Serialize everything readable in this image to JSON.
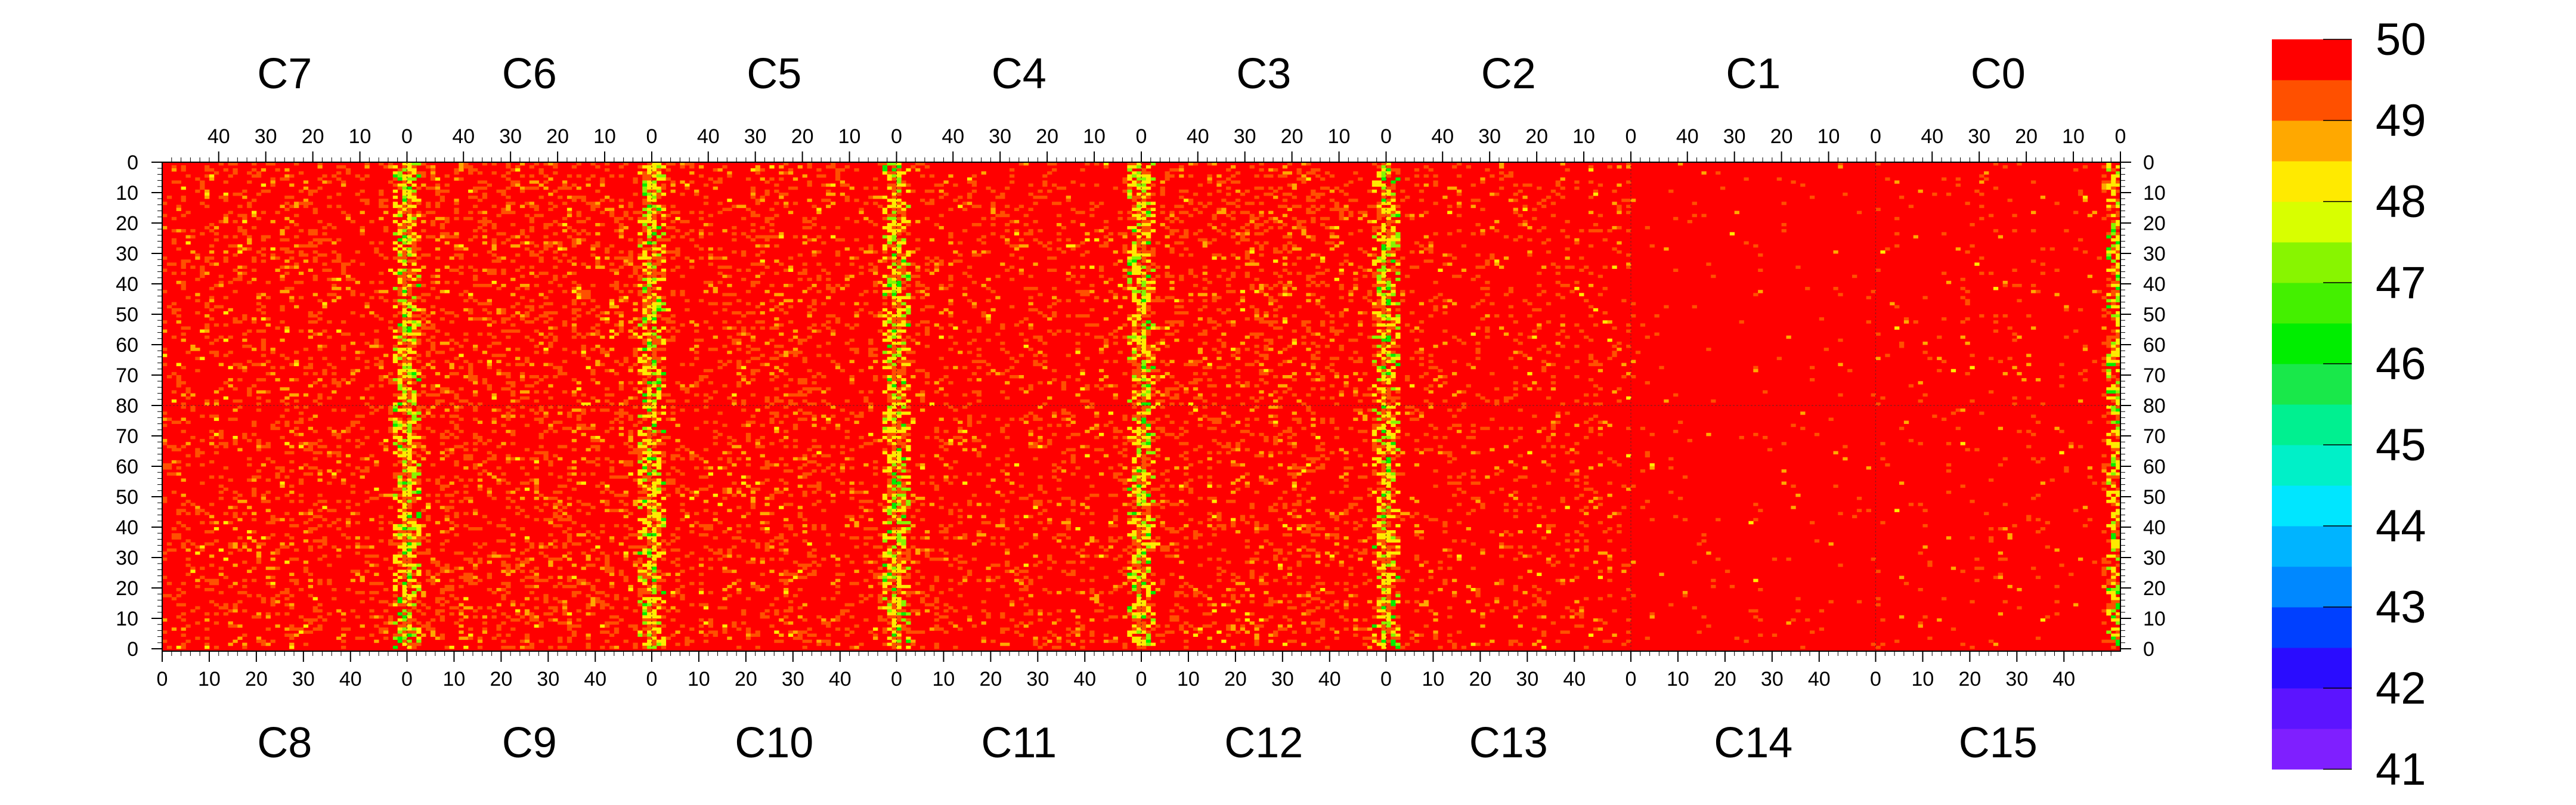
{
  "chart_data": {
    "type": "heatmap",
    "title": "",
    "xlabel": "",
    "ylabel": "",
    "z_range": [
      41,
      50
    ],
    "palette": [
      "#7f1fff",
      "#5c14ff",
      "#2a0cff",
      "#0040ff",
      "#0088ff",
      "#00b4ff",
      "#00e6ff",
      "#00f0c8",
      "#00f090",
      "#19e84a",
      "#00ee00",
      "#44f000",
      "#88f500",
      "#d8ff00",
      "#ffea00",
      "#ffa800",
      "#ff5000",
      "#ff0000"
    ],
    "colorbar_ticks": [
      "50",
      "49",
      "48",
      "47",
      "46",
      "45",
      "44",
      "43",
      "42",
      "41"
    ],
    "top_chip_labels": [
      "C7",
      "C6",
      "C5",
      "C4",
      "C3",
      "C2",
      "C1",
      "C0"
    ],
    "bottom_chip_labels": [
      "C8",
      "C9",
      "C10",
      "C11",
      "C12",
      "C13",
      "C14",
      "C15"
    ],
    "top_x_tick_labels": [
      "40",
      "30",
      "20",
      "10",
      "0"
    ],
    "bottom_x_tick_labels": [
      "0",
      "10",
      "20",
      "30",
      "40"
    ],
    "y_tick_labels_top_half": [
      "0",
      "10",
      "20",
      "30",
      "40",
      "50",
      "60",
      "70",
      "80"
    ],
    "y_tick_labels_bottom_half": [
      "70",
      "60",
      "50",
      "40",
      "30",
      "20",
      "10",
      "0"
    ],
    "chip_columns": 52,
    "rows_per_half": 80,
    "dominant_value": 50,
    "chip_noise_levels": {
      "C7": 0.17,
      "C6": 0.22,
      "C5": 0.17,
      "C4": 0.14,
      "C3": 0.2,
      "C2": 0.11,
      "C1": 0.02,
      "C0": 0.04,
      "C8": 0.17,
      "C9": 0.22,
      "C10": 0.17,
      "C11": 0.15,
      "C12": 0.17,
      "C13": 0.11,
      "C14": 0.02,
      "C15": 0.04
    },
    "hot_column_bands": [
      "C7/C6 boundary",
      "C6/C5 boundary",
      "C5/C4 boundary",
      "C4/C3 boundary",
      "C3/C2 boundary",
      "C0 right edge"
    ],
    "grid": false
  }
}
